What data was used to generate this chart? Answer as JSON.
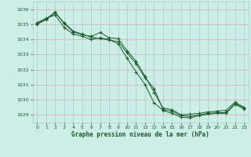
{
  "title": "Graphe pression niveau de la mer (hPa)",
  "bg_color": "#cceee6",
  "plot_bg_color": "#cceee6",
  "grid_color_h": "#ddaaaa",
  "grid_color_v": "#aacccc",
  "line_color": "#1a5c2a",
  "ylim": [
    1028.5,
    1036.5
  ],
  "xlim": [
    -0.5,
    23.5
  ],
  "yticks": [
    1029,
    1030,
    1031,
    1032,
    1033,
    1034,
    1035,
    1036
  ],
  "xticks": [
    0,
    1,
    2,
    3,
    4,
    5,
    6,
    7,
    8,
    9,
    10,
    11,
    12,
    13,
    14,
    15,
    16,
    17,
    18,
    19,
    20,
    21,
    22,
    23
  ],
  "series": [
    [
      1035.0,
      1035.3,
      1035.75,
      1035.1,
      1034.55,
      1034.35,
      1034.15,
      1034.05,
      1033.95,
      1033.85,
      1033.1,
      1032.4,
      1031.45,
      1030.75,
      1029.35,
      1029.25,
      1028.95,
      1028.9,
      1029.0,
      1029.1,
      1029.15,
      1029.15,
      1029.75,
      1029.45
    ],
    [
      1035.05,
      1035.35,
      1035.8,
      1035.05,
      1034.5,
      1034.3,
      1034.2,
      1034.45,
      1034.1,
      1034.05,
      1033.25,
      1032.55,
      1031.55,
      1030.5,
      1029.45,
      1029.35,
      1029.0,
      1029.05,
      1029.1,
      1029.2,
      1029.25,
      1029.3,
      1029.85,
      1029.5
    ],
    [
      1035.1,
      1035.4,
      1035.6,
      1034.8,
      1034.35,
      1034.2,
      1034.0,
      1034.1,
      1034.0,
      1033.7,
      1032.75,
      1031.85,
      1031.0,
      1029.8,
      1029.3,
      1029.1,
      1028.85,
      1028.8,
      1028.95,
      1029.05,
      1029.1,
      1029.1,
      1029.7,
      1029.4
    ]
  ]
}
